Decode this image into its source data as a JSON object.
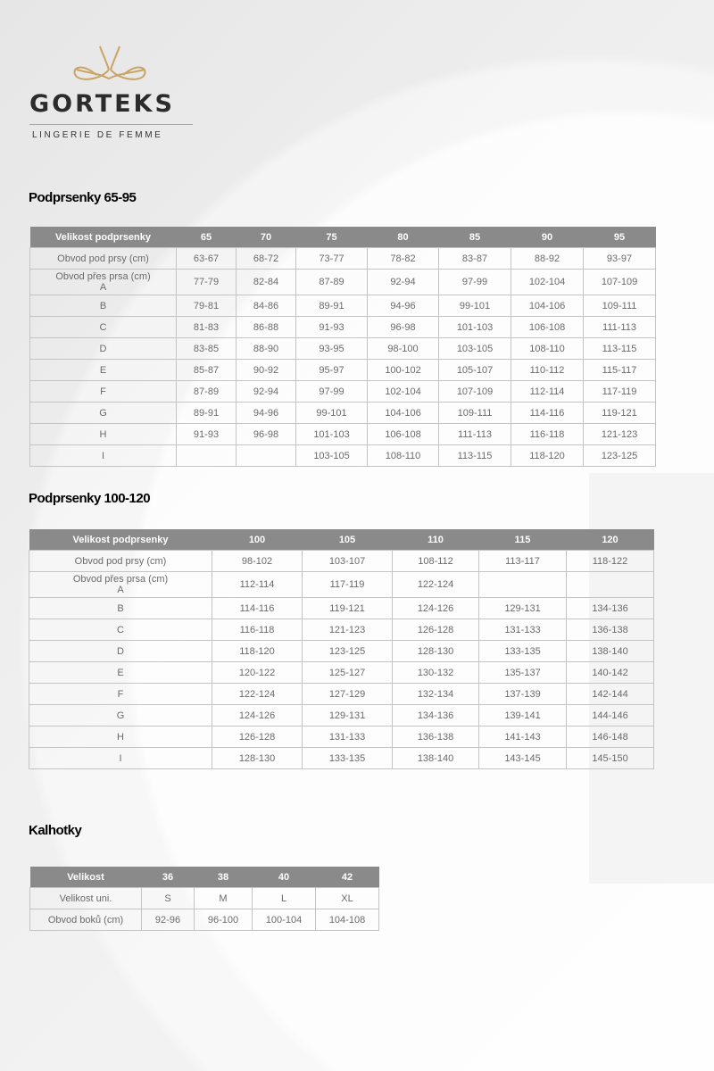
{
  "logo": {
    "brand": "GORTEKS",
    "tagline": "LINGERIE DE FEMME",
    "gold": "#c8a465"
  },
  "colors": {
    "header_bg": "#8a8a8a",
    "header_text": "#ffffff",
    "cell_text": "#6a6a6a",
    "border": "#c4c4c4"
  },
  "tables": [
    {
      "title": "Podprsenky 65-95",
      "header": [
        "Velikost podprsenky",
        "65",
        "70",
        "75",
        "80",
        "85",
        "90",
        "95"
      ],
      "rows": [
        [
          "Obvod pod prsy (cm)",
          "63-67",
          "68-72",
          "73-77",
          "78-82",
          "83-87",
          "88-92",
          "93-97"
        ],
        [
          "Obvod přes prsa (cm)\nA",
          "77-79",
          "82-84",
          "87-89",
          "92-94",
          "97-99",
          "102-104",
          "107-109"
        ],
        [
          "B",
          "79-81",
          "84-86",
          "89-91",
          "94-96",
          "99-101",
          "104-106",
          "109-111"
        ],
        [
          "C",
          "81-83",
          "86-88",
          "91-93",
          "96-98",
          "101-103",
          "106-108",
          "111-113"
        ],
        [
          "D",
          "83-85",
          "88-90",
          "93-95",
          "98-100",
          "103-105",
          "108-110",
          "113-115"
        ],
        [
          "E",
          "85-87",
          "90-92",
          "95-97",
          "100-102",
          "105-107",
          "110-112",
          "115-117"
        ],
        [
          "F",
          "87-89",
          "92-94",
          "97-99",
          "102-104",
          "107-109",
          "112-114",
          "117-119"
        ],
        [
          "G",
          "89-91",
          "94-96",
          "99-101",
          "104-106",
          "109-111",
          "114-116",
          "119-121"
        ],
        [
          "H",
          "91-93",
          "96-98",
          "101-103",
          "106-108",
          "111-113",
          "116-118",
          "121-123"
        ],
        [
          "I",
          "",
          "",
          "103-105",
          "108-110",
          "113-115",
          "118-120",
          "123-125"
        ]
      ]
    },
    {
      "title": "Podprsenky 100-120",
      "header": [
        "Velikost podprsenky",
        "100",
        "105",
        "110",
        "115",
        "120"
      ],
      "rows": [
        [
          "Obvod pod prsy (cm)",
          "98-102",
          "103-107",
          "108-112",
          "113-117",
          "118-122"
        ],
        [
          "Obvod přes prsa (cm)\nA",
          "112-114",
          "117-119",
          "122-124",
          "",
          ""
        ],
        [
          "B",
          "114-116",
          "119-121",
          "124-126",
          "129-131",
          "134-136"
        ],
        [
          "C",
          "116-118",
          "121-123",
          "126-128",
          "131-133",
          "136-138"
        ],
        [
          "D",
          "118-120",
          "123-125",
          "128-130",
          "133-135",
          "138-140"
        ],
        [
          "E",
          "120-122",
          "125-127",
          "130-132",
          "135-137",
          "140-142"
        ],
        [
          "F",
          "122-124",
          "127-129",
          "132-134",
          "137-139",
          "142-144"
        ],
        [
          "G",
          "124-126",
          "129-131",
          "134-136",
          "139-141",
          "144-146"
        ],
        [
          "H",
          "126-128",
          "131-133",
          "136-138",
          "141-143",
          "146-148"
        ],
        [
          "I",
          "128-130",
          "133-135",
          "138-140",
          "143-145",
          "145-150"
        ]
      ]
    },
    {
      "title": "Kalhotky",
      "header": [
        "Velikost",
        "36",
        "38",
        "40",
        "42"
      ],
      "rows": [
        [
          "Velikost uni.",
          "S",
          "M",
          "L",
          "XL"
        ],
        [
          "Obvod boků (cm)",
          "92-96",
          "96-100",
          "100-104",
          "104-108"
        ]
      ]
    }
  ]
}
